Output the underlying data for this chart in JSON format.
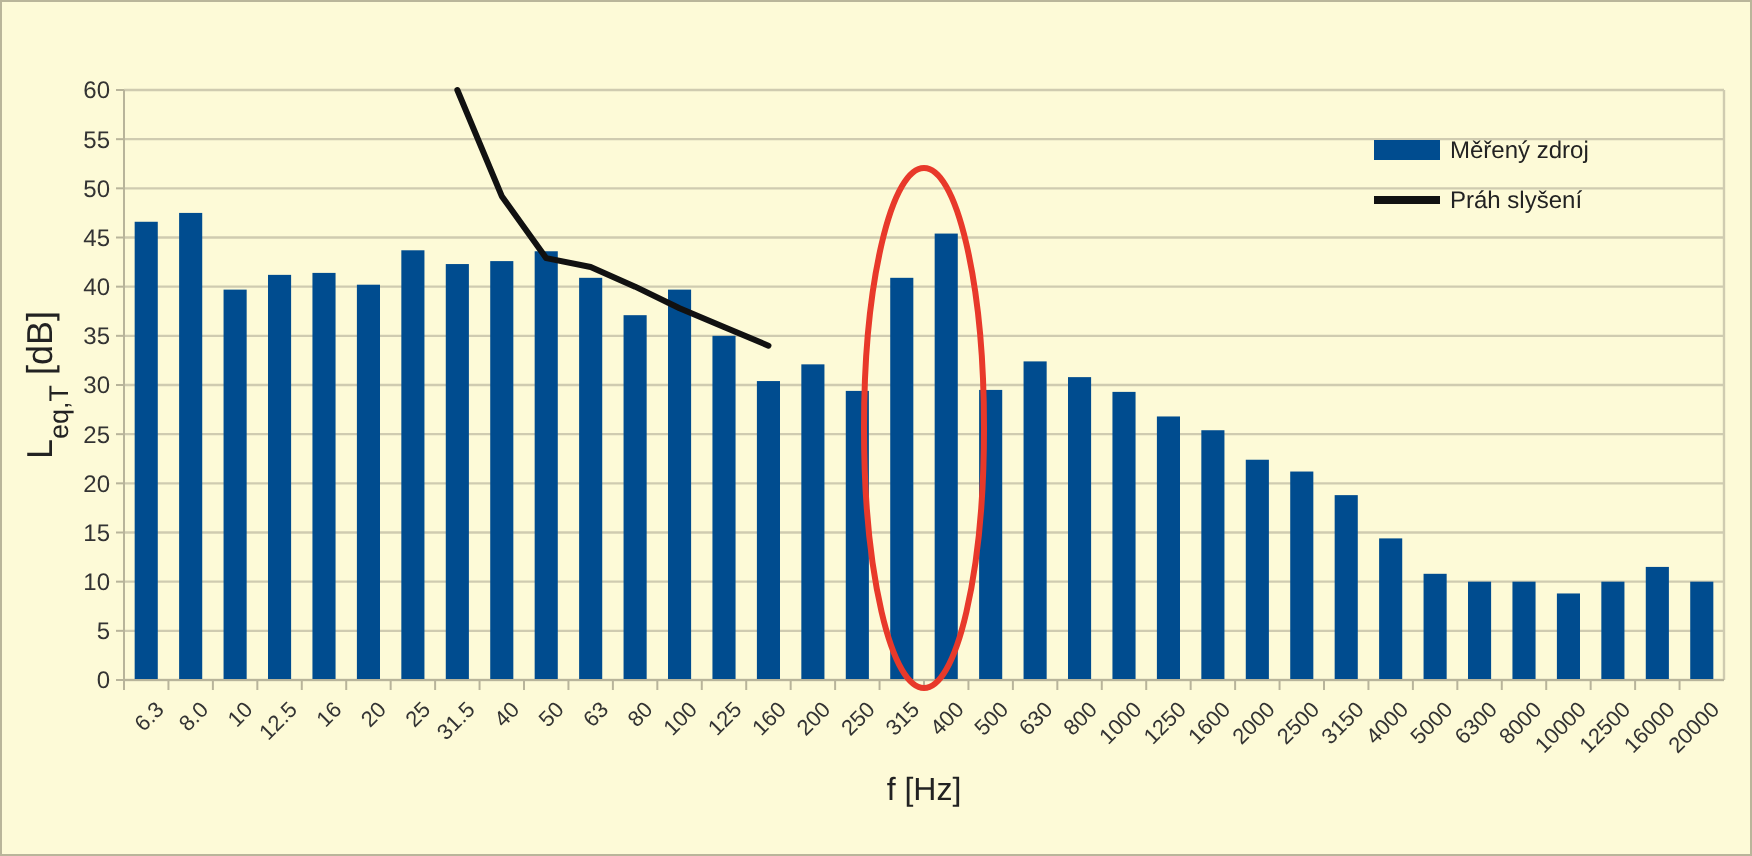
{
  "chart_data": {
    "type": "bar",
    "xlabel": "f [Hz]",
    "ylabel": "L$_{eq,T}$ [dB]",
    "categories": [
      "6.3",
      "8.0",
      "10",
      "12.5",
      "16",
      "20",
      "25",
      "31.5",
      "40",
      "50",
      "63",
      "80",
      "100",
      "125",
      "160",
      "200",
      "250",
      "315",
      "400",
      "500",
      "630",
      "800",
      "1000",
      "1250",
      "1600",
      "2000",
      "2500",
      "3150",
      "4000",
      "5000",
      "6300",
      "8000",
      "10000",
      "12500",
      "16000",
      "20000"
    ],
    "series": [
      {
        "name": "Měřený zdroj",
        "color": "#004c8f",
        "values": [
          46.6,
          47.5,
          39.7,
          41.2,
          41.4,
          40.2,
          43.7,
          42.3,
          42.6,
          43.6,
          40.9,
          37.1,
          39.7,
          35.0,
          30.4,
          32.1,
          29.4,
          40.9,
          45.4,
          29.5,
          32.4,
          30.8,
          29.3,
          26.8,
          25.4,
          22.4,
          21.2,
          18.8,
          14.4,
          10.8,
          10.0,
          10.0,
          8.8,
          10.0,
          11.5,
          10.0
        ]
      },
      {
        "name": "Práh slyšení",
        "type": "line",
        "color": "#111111",
        "x": [
          "31.5",
          "40",
          "50",
          "63",
          "80",
          "100",
          "125",
          "160"
        ],
        "values": [
          60,
          49.2,
          42.9,
          42.0,
          40.0,
          37.8,
          35.9,
          34.0
        ]
      }
    ],
    "ylim": [
      0,
      60
    ],
    "yticks": [
      0,
      5,
      10,
      15,
      20,
      25,
      30,
      35,
      40,
      45,
      50,
      55,
      60
    ],
    "grid": "y",
    "legend": "top right",
    "marker": "none",
    "line_style": "solid"
  }
}
